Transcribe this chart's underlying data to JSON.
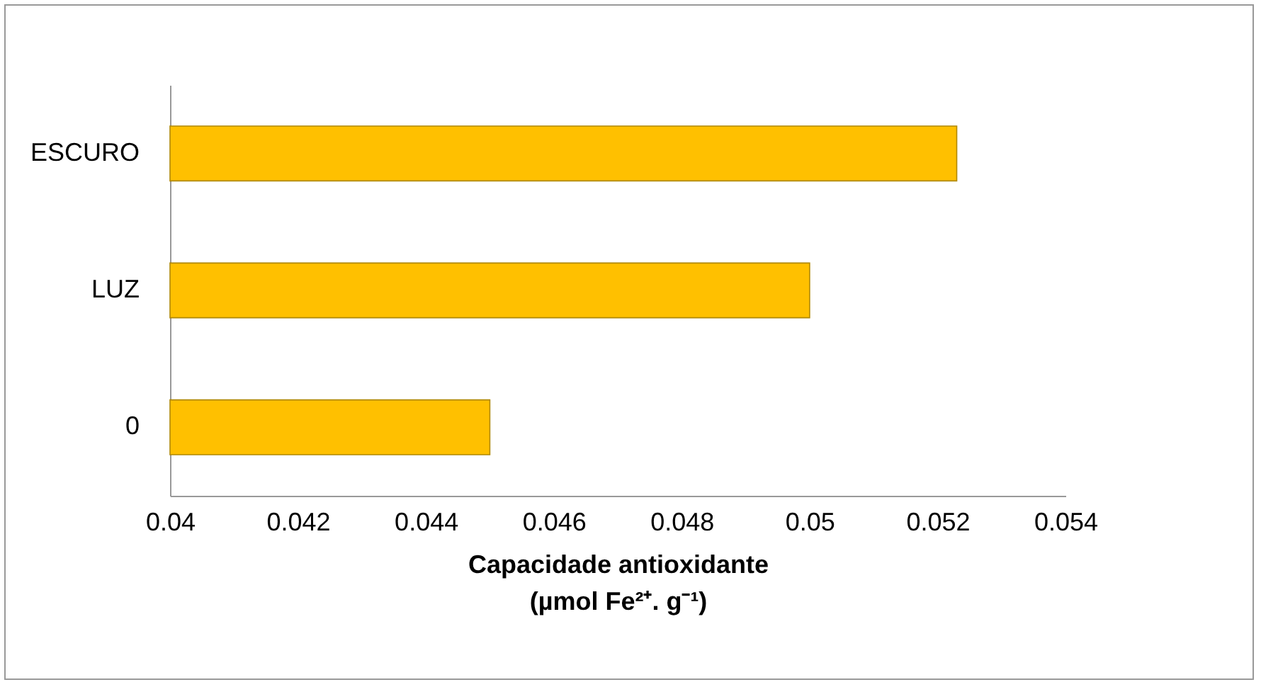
{
  "chart_data": {
    "type": "bar",
    "orientation": "horizontal",
    "categories": [
      "ESCURO",
      "LUZ",
      "0"
    ],
    "values": [
      0.0523,
      0.05,
      0.045
    ],
    "color": "#ffc000",
    "xlim": [
      0.04,
      0.054
    ],
    "xticks": [
      0.04,
      0.042,
      0.044,
      0.046,
      0.048,
      0.05,
      0.052,
      0.054
    ],
    "xlabel": "Capacidade antioxidante\n(µmol Fe²⁺. g⁻¹)",
    "grid": false
  }
}
